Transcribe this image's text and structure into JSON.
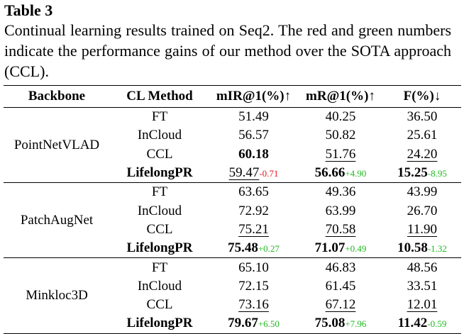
{
  "title": "Table 3",
  "caption": "Continual learning results trained on Seq2. The red and green numbers indicate the performance gains of our method over the SOTA approach (CCL).",
  "headers": [
    "Backbone",
    "CL Method",
    "mIR@1(%)↑",
    "mR@1(%)↑",
    "F(%)↓"
  ],
  "groups": [
    {
      "backbone": "PointNetVLAD",
      "rows": [
        {
          "method": "FT",
          "m1": "51.49",
          "m2": "40.25",
          "f": "36.50"
        },
        {
          "method": "InCloud",
          "m1": "56.57",
          "m2": "50.82",
          "f": "25.61"
        },
        {
          "method": "CCL",
          "m1": "60.18",
          "m2": "51.76",
          "f": "24.20"
        },
        {
          "method": "LifelongPR",
          "m1": "59.47",
          "m1_gain": "-0.71",
          "m2": "56.66",
          "m2_gain": "+4.90",
          "f": "15.25",
          "f_gain": "-8.95"
        }
      ]
    },
    {
      "backbone": "PatchAugNet",
      "rows": [
        {
          "method": "FT",
          "m1": "63.65",
          "m2": "49.36",
          "f": "43.99"
        },
        {
          "method": "InCloud",
          "m1": "72.92",
          "m2": "63.99",
          "f": "26.70"
        },
        {
          "method": "CCL",
          "m1": "75.21",
          "m2": "70.58",
          "f": "11.90"
        },
        {
          "method": "LifelongPR",
          "m1": "75.48",
          "m1_gain": "+0.27",
          "m2": "71.07",
          "m2_gain": "+0.49",
          "f": "10.58",
          "f_gain": "-1.32"
        }
      ]
    },
    {
      "backbone": "Minkloc3D",
      "rows": [
        {
          "method": "FT",
          "m1": "65.10",
          "m2": "46.83",
          "f": "48.56"
        },
        {
          "method": "InCloud",
          "m1": "72.15",
          "m2": "61.45",
          "f": "33.51"
        },
        {
          "method": "CCL",
          "m1": "73.16",
          "m2": "67.12",
          "f": "12.01"
        },
        {
          "method": "LifelongPR",
          "m1": "79.67",
          "m1_gain": "+6.50",
          "m2": "75.08",
          "m2_gain": "+7.96",
          "f": "11.42",
          "f_gain": "-0.59"
        }
      ]
    }
  ]
}
